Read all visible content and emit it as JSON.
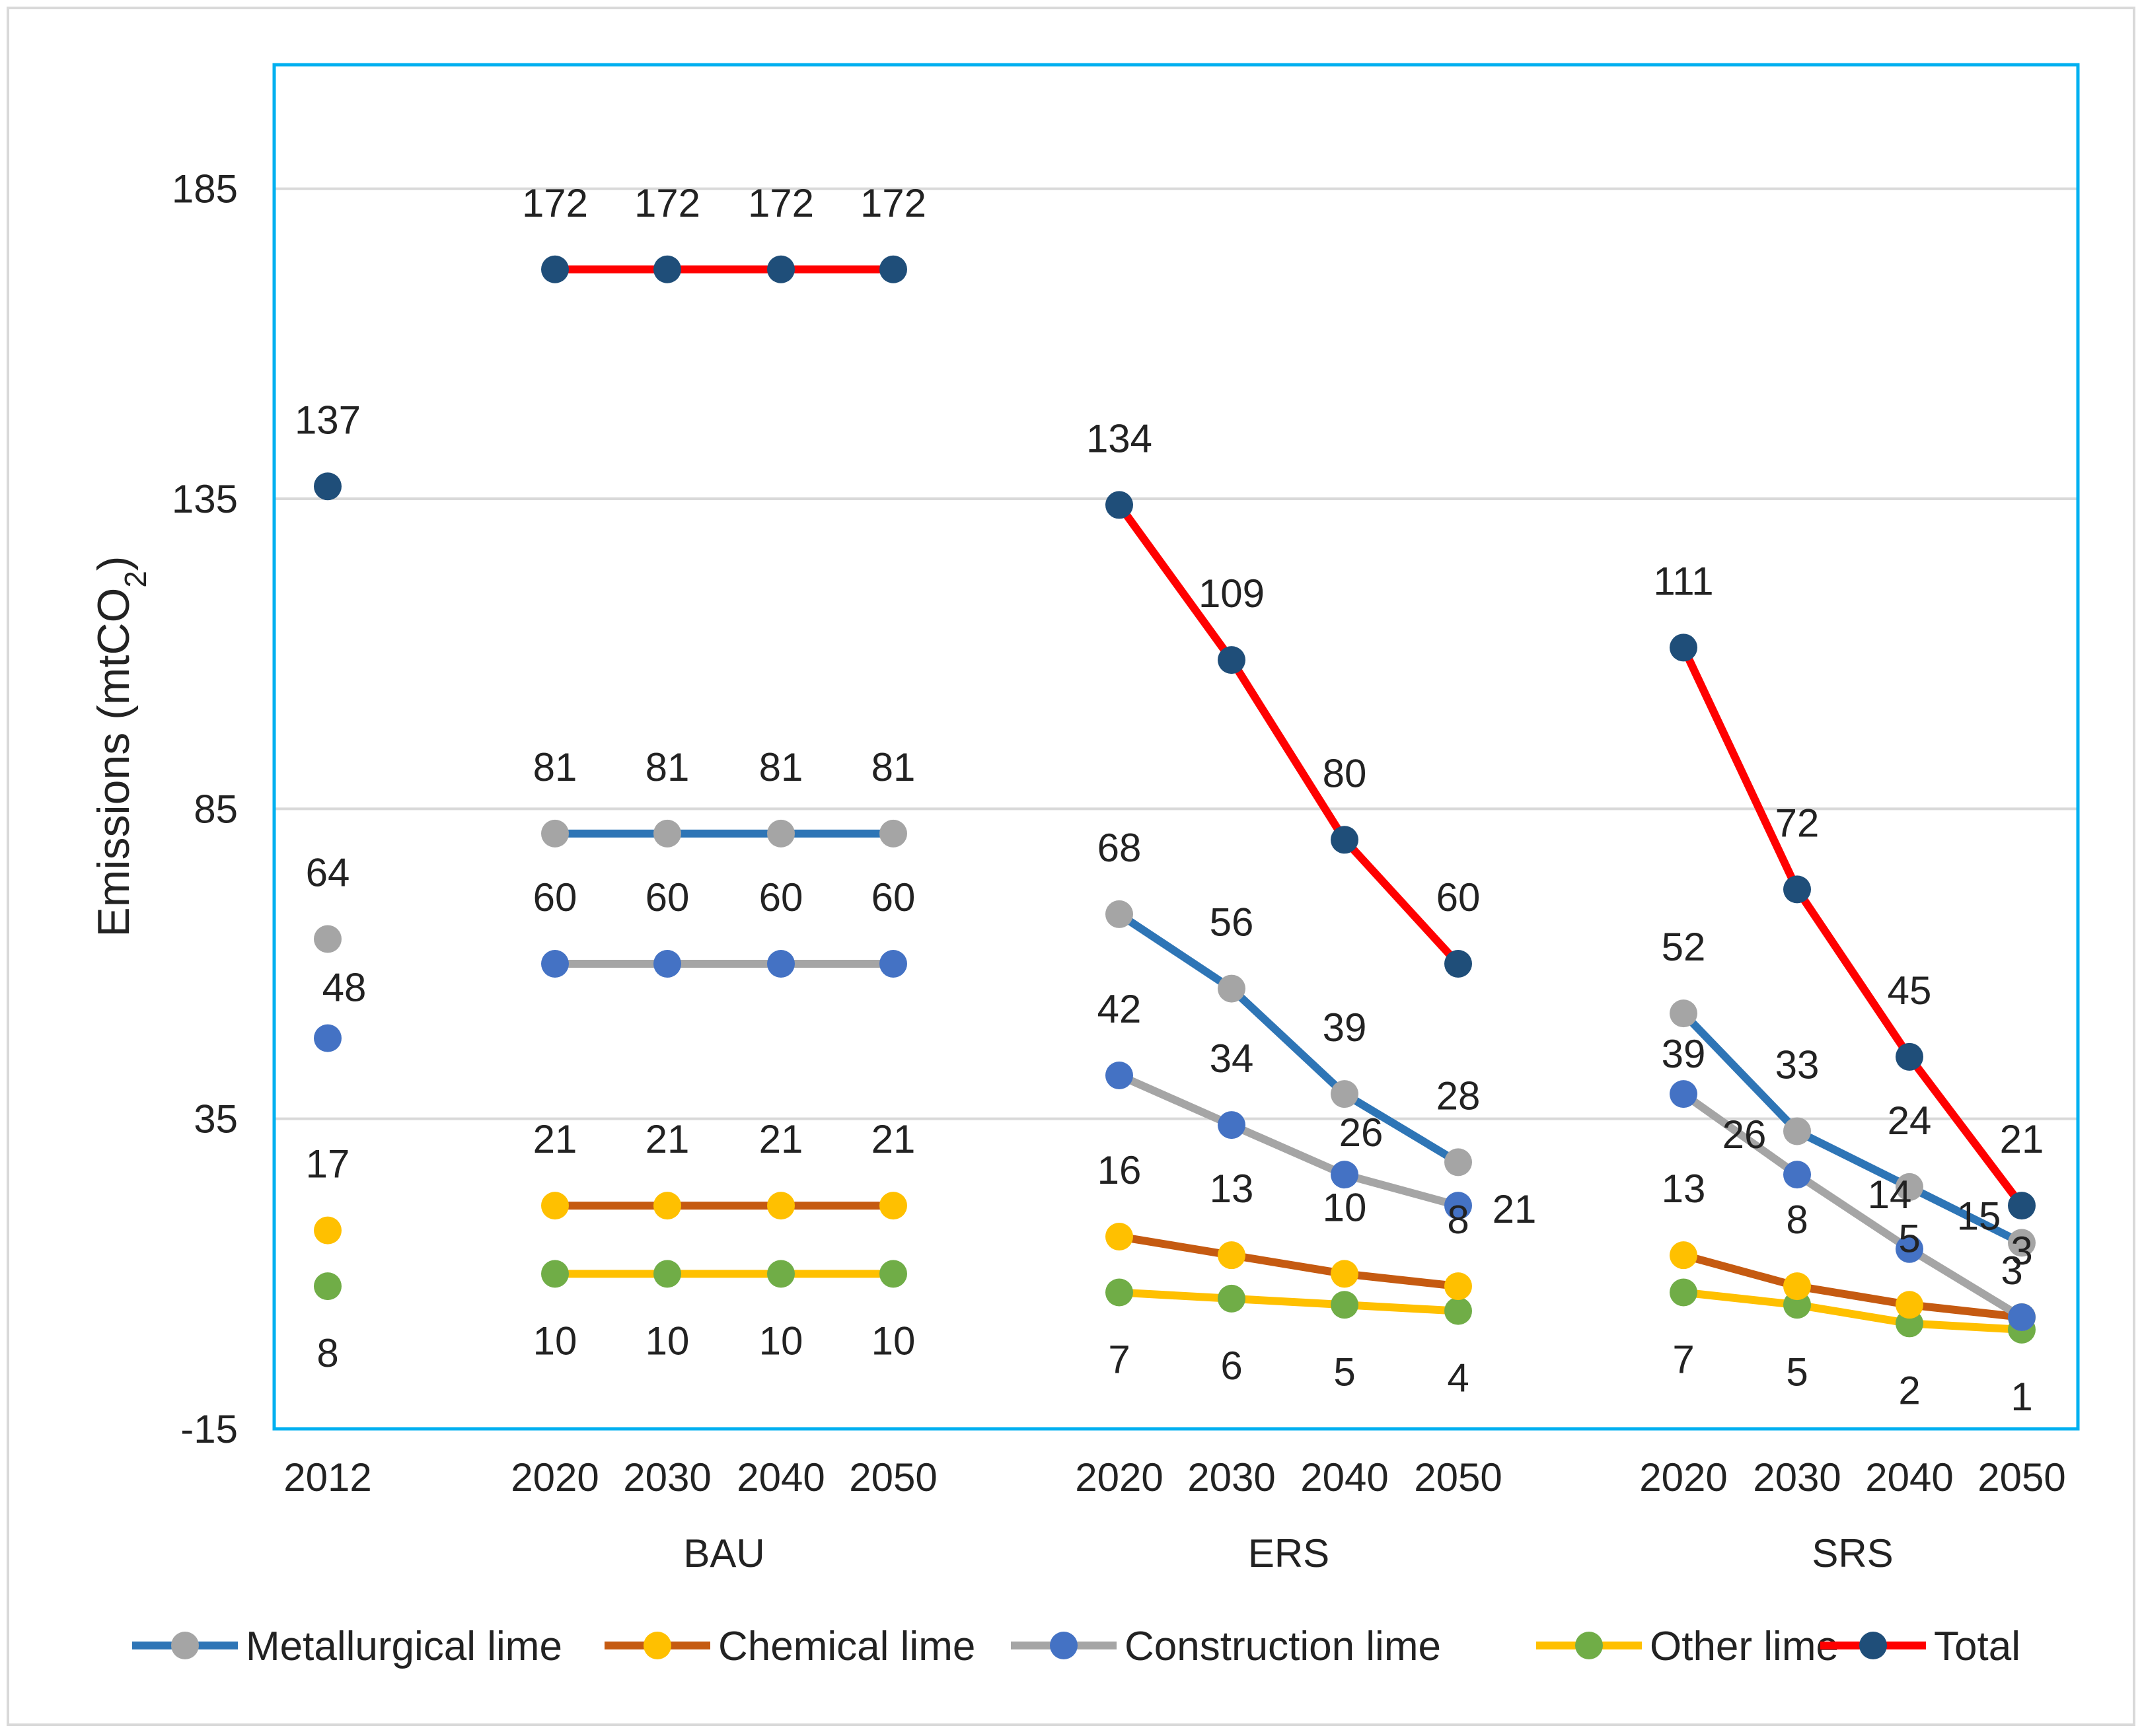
{
  "chart_data": {
    "type": "line",
    "title": "",
    "ylabel_main": "Emissions (mtCO",
    "ylabel_sub": "2",
    "ylabel_tail": ")",
    "ylim": [
      -15,
      205
    ],
    "yticks": [
      -15,
      35,
      85,
      135,
      185
    ],
    "yticks_labels": [
      "-15",
      "35",
      "85",
      "135",
      "185"
    ],
    "grid": true,
    "legend_position": "bottom",
    "categories": [
      "2012",
      "2020",
      "2030",
      "2040",
      "2050",
      "2020",
      "2030",
      "2040",
      "2050",
      "2020",
      "2030",
      "2040",
      "2050"
    ],
    "groups": [
      {
        "label": "",
        "categories": [
          "2012"
        ]
      },
      {
        "label": "BAU",
        "categories": [
          "2020",
          "2030",
          "2040",
          "2050"
        ]
      },
      {
        "label": "ERS",
        "categories": [
          "2020",
          "2030",
          "2040",
          "2050"
        ]
      },
      {
        "label": "SRS",
        "categories": [
          "2020",
          "2030",
          "2040",
          "2050"
        ]
      }
    ],
    "series": [
      {
        "name": "Metallurgical lime",
        "line_color": "#2e75b6",
        "marker_color": "#a5a5a5",
        "points": [
          {
            "cat": 0,
            "y": 64,
            "label": "64"
          },
          {
            "cat": 1,
            "y": 81,
            "label": "81"
          },
          {
            "cat": 2,
            "y": 81,
            "label": "81"
          },
          {
            "cat": 3,
            "y": 81,
            "label": "81"
          },
          {
            "cat": 4,
            "y": 81,
            "label": "81"
          },
          {
            "cat": 5,
            "y": 68,
            "label": "68"
          },
          {
            "cat": 6,
            "y": 56,
            "label": "56"
          },
          {
            "cat": 7,
            "y": 39,
            "label": "39"
          },
          {
            "cat": 8,
            "y": 28,
            "label": "28"
          },
          {
            "cat": 9,
            "y": 52,
            "label": "52"
          },
          {
            "cat": 10,
            "y": 33,
            "label": "33"
          },
          {
            "cat": 11,
            "y": 24,
            "label": "24"
          },
          {
            "cat": 12,
            "y": 15,
            "label": "15"
          }
        ]
      },
      {
        "name": "Chemical lime",
        "line_color": "#c55a11",
        "marker_color": "#ffc000",
        "points": [
          {
            "cat": 0,
            "y": 17,
            "label": "17"
          },
          {
            "cat": 1,
            "y": 21,
            "label": "21"
          },
          {
            "cat": 2,
            "y": 21,
            "label": "21"
          },
          {
            "cat": 3,
            "y": 21,
            "label": "21"
          },
          {
            "cat": 4,
            "y": 21,
            "label": "21"
          },
          {
            "cat": 5,
            "y": 16,
            "label": "16"
          },
          {
            "cat": 6,
            "y": 13,
            "label": "13"
          },
          {
            "cat": 7,
            "y": 10,
            "label": "10"
          },
          {
            "cat": 8,
            "y": 8,
            "label": "8"
          },
          {
            "cat": 9,
            "y": 13,
            "label": "13"
          },
          {
            "cat": 10,
            "y": 8,
            "label": "8"
          },
          {
            "cat": 11,
            "y": 5,
            "label": "5"
          },
          {
            "cat": 12,
            "y": 3,
            "label": "3"
          }
        ]
      },
      {
        "name": "Construction lime",
        "line_color": "#a5a5a5",
        "marker_color": "#4472c4",
        "points": [
          {
            "cat": 0,
            "y": 48,
            "label": "48"
          },
          {
            "cat": 1,
            "y": 60,
            "label": "60"
          },
          {
            "cat": 2,
            "y": 60,
            "label": "60"
          },
          {
            "cat": 3,
            "y": 60,
            "label": "60"
          },
          {
            "cat": 4,
            "y": 60,
            "label": "60"
          },
          {
            "cat": 5,
            "y": 42,
            "label": "42"
          },
          {
            "cat": 6,
            "y": 34,
            "label": "34"
          },
          {
            "cat": 7,
            "y": 26,
            "label": "26"
          },
          {
            "cat": 8,
            "y": 21,
            "label": "21"
          },
          {
            "cat": 9,
            "y": 39,
            "label": "39"
          },
          {
            "cat": 10,
            "y": 26,
            "label": "26"
          },
          {
            "cat": 11,
            "y": 14,
            "label": "14"
          },
          {
            "cat": 12,
            "y": 3,
            "label": "3"
          }
        ]
      },
      {
        "name": "Other lime",
        "line_color": "#ffc000",
        "marker_color": "#70ad47",
        "points": [
          {
            "cat": 0,
            "y": 8,
            "label": "8"
          },
          {
            "cat": 1,
            "y": 10,
            "label": "10"
          },
          {
            "cat": 2,
            "y": 10,
            "label": "10"
          },
          {
            "cat": 3,
            "y": 10,
            "label": "10"
          },
          {
            "cat": 4,
            "y": 10,
            "label": "10"
          },
          {
            "cat": 5,
            "y": 7,
            "label": "7"
          },
          {
            "cat": 6,
            "y": 6,
            "label": "6"
          },
          {
            "cat": 7,
            "y": 5,
            "label": "5"
          },
          {
            "cat": 8,
            "y": 4,
            "label": "4"
          },
          {
            "cat": 9,
            "y": 7,
            "label": "7"
          },
          {
            "cat": 10,
            "y": 5,
            "label": "5"
          },
          {
            "cat": 11,
            "y": 2,
            "label": "2"
          },
          {
            "cat": 12,
            "y": 1,
            "label": "1"
          }
        ]
      },
      {
        "name": "Total",
        "line_color": "#ff0000",
        "marker_color": "#1f4e79",
        "points": [
          {
            "cat": 0,
            "y": 137,
            "label": "137"
          },
          {
            "cat": 1,
            "y": 172,
            "label": "172"
          },
          {
            "cat": 2,
            "y": 172,
            "label": "172"
          },
          {
            "cat": 3,
            "y": 172,
            "label": "172"
          },
          {
            "cat": 4,
            "y": 172,
            "label": "172"
          },
          {
            "cat": 5,
            "y": 134,
            "label": "134"
          },
          {
            "cat": 6,
            "y": 109,
            "label": "109"
          },
          {
            "cat": 7,
            "y": 80,
            "label": "80"
          },
          {
            "cat": 8,
            "y": 60,
            "label": "60"
          },
          {
            "cat": 9,
            "y": 111,
            "label": "111"
          },
          {
            "cat": 10,
            "y": 72,
            "label": "72"
          },
          {
            "cat": 11,
            "y": 45,
            "label": "45"
          },
          {
            "cat": 12,
            "y": 21,
            "label": "21"
          }
        ]
      }
    ],
    "line_segments": [
      [
        1,
        4
      ],
      [
        5,
        8
      ],
      [
        9,
        12
      ]
    ],
    "plot_area_border_color": "#00b0f0",
    "grid_color": "#d9d9d9"
  }
}
